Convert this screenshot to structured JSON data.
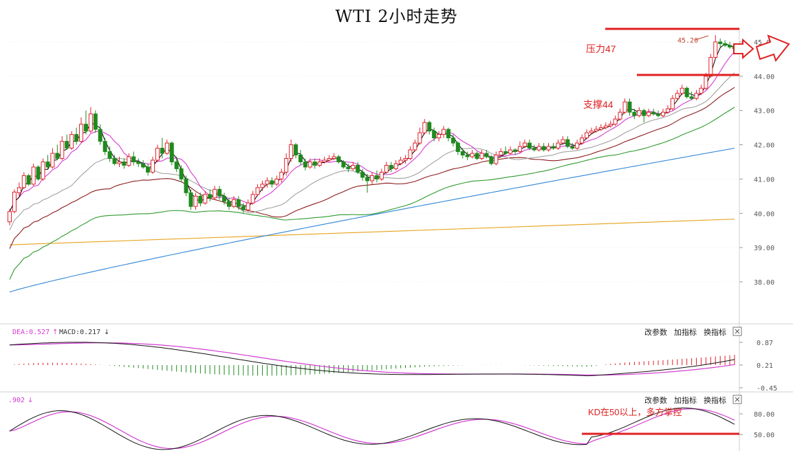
{
  "title": "WTI 2小时走势",
  "colors": {
    "bull": "#e0202a",
    "bear": "#1e8a1e",
    "ma5": "#111111",
    "ma10": "#d23ad2",
    "ma20": "#a0a0a0",
    "ma30": "#8b1a1a",
    "ma60": "#2e9a2e",
    "ma120": "#2f86d6",
    "ma250": "#e5a21a",
    "annotation": "#e02020",
    "macd_line": "#111111",
    "signal_line": "#d23ad2"
  },
  "price_panel": {
    "yticks": [
      "45.00",
      "44.00",
      "43.00",
      "42.00",
      "41.00",
      "40.00",
      "39.00",
      "38.00"
    ],
    "high_label": "45.20",
    "annotations": {
      "resistance": "压力47",
      "support": "支撑44"
    }
  },
  "macd_panel": {
    "legend_dea": "DEA:0.527",
    "legend_macd": "MACD:0.217",
    "yticks": [
      "0.87",
      "0.21",
      "-0.45"
    ],
    "buttons": [
      "改参数",
      "加指标",
      "换指标"
    ]
  },
  "kd_panel": {
    "legend": ".902",
    "yticks": [
      "80.00",
      "50.00"
    ],
    "buttons": [
      "改参数",
      "加指标",
      "换指标"
    ],
    "annotation": "KD在50以上，多方掌控"
  },
  "chart_data": {
    "type": "candlestick",
    "title": "WTI 2小时走势",
    "ylim": [
      37.0,
      45.8
    ],
    "candles": [
      [
        39.75,
        40.05,
        39.65,
        40.12
      ],
      [
        40.05,
        40.62,
        40.0,
        40.7
      ],
      [
        40.6,
        40.75,
        40.5,
        40.9
      ],
      [
        40.75,
        41.1,
        40.7,
        41.2
      ],
      [
        41.1,
        40.85,
        40.8,
        41.15
      ],
      [
        40.85,
        41.35,
        40.8,
        41.45
      ],
      [
        41.35,
        41.0,
        40.95,
        41.4
      ],
      [
        41.0,
        41.5,
        40.95,
        41.6
      ],
      [
        41.5,
        41.35,
        41.3,
        41.7
      ],
      [
        41.35,
        41.75,
        41.3,
        41.9
      ],
      [
        41.75,
        41.6,
        41.55,
        42.0
      ],
      [
        41.6,
        42.1,
        41.55,
        42.25
      ],
      [
        42.1,
        41.9,
        41.85,
        42.3
      ],
      [
        41.9,
        42.3,
        41.85,
        42.4
      ],
      [
        42.3,
        42.1,
        42.0,
        42.5
      ],
      [
        42.1,
        42.6,
        42.05,
        42.8
      ],
      [
        42.6,
        42.4,
        42.3,
        43.0
      ],
      [
        42.4,
        42.9,
        42.35,
        43.1
      ],
      [
        42.9,
        42.45,
        42.35,
        43.0
      ],
      [
        42.45,
        42.1,
        42.0,
        42.6
      ],
      [
        42.1,
        41.8,
        41.7,
        42.2
      ],
      [
        41.8,
        41.6,
        41.5,
        41.95
      ],
      [
        41.6,
        41.45,
        41.4,
        41.7
      ],
      [
        41.45,
        41.5,
        41.35,
        41.65
      ],
      [
        41.5,
        41.4,
        41.3,
        41.6
      ],
      [
        41.4,
        41.65,
        41.35,
        41.75
      ],
      [
        41.65,
        41.5,
        41.4,
        41.8
      ],
      [
        41.5,
        41.45,
        41.35,
        41.6
      ],
      [
        41.45,
        41.35,
        41.3,
        41.55
      ],
      [
        41.35,
        41.2,
        41.1,
        41.45
      ],
      [
        41.2,
        41.55,
        41.15,
        41.65
      ],
      [
        41.55,
        41.9,
        41.5,
        42.0
      ],
      [
        41.9,
        41.75,
        41.6,
        42.2
      ],
      [
        41.75,
        42.05,
        41.7,
        42.15
      ],
      [
        42.05,
        41.5,
        41.4,
        42.1
      ],
      [
        41.5,
        41.3,
        41.2,
        41.65
      ],
      [
        41.3,
        41.0,
        40.9,
        41.4
      ],
      [
        41.0,
        40.6,
        40.5,
        41.1
      ],
      [
        40.6,
        40.2,
        40.1,
        40.7
      ],
      [
        40.2,
        40.5,
        40.1,
        40.6
      ],
      [
        40.5,
        40.3,
        40.2,
        40.6
      ],
      [
        40.3,
        40.55,
        40.25,
        40.65
      ],
      [
        40.55,
        40.45,
        40.35,
        40.7
      ],
      [
        40.45,
        40.7,
        40.4,
        40.8
      ],
      [
        40.7,
        40.5,
        40.4,
        40.8
      ],
      [
        40.5,
        40.35,
        40.25,
        40.6
      ],
      [
        40.35,
        40.2,
        40.1,
        40.45
      ],
      [
        40.2,
        40.4,
        40.15,
        40.5
      ],
      [
        40.4,
        40.2,
        40.1,
        40.5
      ],
      [
        40.2,
        40.1,
        40.0,
        40.3
      ],
      [
        40.1,
        40.3,
        40.05,
        40.4
      ],
      [
        40.3,
        40.55,
        40.25,
        40.65
      ],
      [
        40.55,
        40.75,
        40.5,
        40.85
      ],
      [
        40.75,
        40.85,
        40.65,
        40.95
      ],
      [
        40.85,
        40.95,
        40.75,
        41.05
      ],
      [
        40.95,
        40.85,
        40.75,
        41.05
      ],
      [
        40.85,
        41.0,
        40.8,
        41.1
      ],
      [
        41.0,
        41.2,
        40.9,
        41.3
      ],
      [
        41.2,
        41.6,
        41.1,
        41.75
      ],
      [
        41.6,
        42.0,
        41.5,
        42.15
      ],
      [
        42.0,
        41.7,
        41.6,
        42.05
      ],
      [
        41.7,
        41.5,
        41.4,
        41.85
      ],
      [
        41.5,
        41.35,
        41.25,
        41.6
      ],
      [
        41.35,
        41.5,
        41.3,
        41.6
      ],
      [
        41.5,
        41.4,
        41.3,
        41.6
      ],
      [
        41.4,
        41.5,
        41.35,
        41.6
      ],
      [
        41.5,
        41.55,
        41.45,
        41.65
      ],
      [
        41.55,
        41.6,
        41.5,
        41.7
      ],
      [
        41.6,
        41.65,
        41.55,
        41.75
      ],
      [
        41.65,
        41.5,
        41.45,
        41.7
      ],
      [
        41.5,
        41.35,
        41.3,
        41.55
      ],
      [
        41.35,
        41.3,
        41.2,
        41.45
      ],
      [
        41.3,
        41.4,
        41.25,
        41.5
      ],
      [
        41.4,
        41.2,
        41.15,
        41.5
      ],
      [
        41.2,
        41.05,
        40.95,
        41.3
      ],
      [
        41.05,
        40.95,
        40.6,
        41.15
      ],
      [
        40.95,
        41.1,
        40.85,
        41.2
      ],
      [
        41.1,
        41.0,
        40.9,
        41.25
      ],
      [
        41.0,
        41.2,
        40.95,
        41.3
      ],
      [
        41.2,
        41.4,
        41.15,
        41.5
      ],
      [
        41.4,
        41.3,
        41.2,
        41.5
      ],
      [
        41.3,
        41.45,
        41.25,
        41.55
      ],
      [
        41.45,
        41.55,
        41.4,
        41.65
      ],
      [
        41.55,
        41.6,
        41.45,
        41.7
      ],
      [
        41.6,
        41.85,
        41.55,
        41.95
      ],
      [
        41.85,
        42.05,
        41.8,
        42.15
      ],
      [
        42.05,
        42.35,
        42.0,
        42.5
      ],
      [
        42.35,
        42.65,
        42.3,
        42.75
      ],
      [
        42.65,
        42.4,
        42.3,
        42.7
      ],
      [
        42.4,
        42.2,
        42.1,
        42.5
      ],
      [
        42.2,
        42.3,
        42.1,
        42.4
      ],
      [
        42.3,
        42.45,
        42.2,
        42.55
      ],
      [
        42.45,
        42.2,
        42.1,
        42.5
      ],
      [
        42.2,
        42.05,
        41.95,
        42.3
      ],
      [
        42.05,
        41.8,
        41.7,
        42.1
      ],
      [
        41.8,
        41.7,
        41.6,
        41.9
      ],
      [
        41.7,
        41.65,
        41.55,
        41.8
      ],
      [
        41.65,
        41.75,
        41.6,
        41.85
      ],
      [
        41.75,
        41.6,
        41.55,
        41.8
      ],
      [
        41.6,
        41.75,
        41.55,
        41.85
      ],
      [
        41.75,
        41.65,
        41.6,
        41.85
      ],
      [
        41.65,
        41.45,
        41.4,
        41.7
      ],
      [
        41.45,
        41.7,
        41.4,
        41.8
      ],
      [
        41.7,
        41.8,
        41.65,
        41.9
      ],
      [
        41.8,
        41.75,
        41.7,
        41.95
      ],
      [
        41.75,
        41.85,
        41.7,
        41.95
      ],
      [
        41.85,
        41.8,
        41.7,
        41.9
      ],
      [
        41.8,
        41.95,
        41.75,
        42.1
      ],
      [
        41.95,
        42.05,
        41.9,
        42.15
      ],
      [
        42.05,
        41.9,
        41.85,
        42.15
      ],
      [
        41.9,
        41.85,
        41.8,
        42.0
      ],
      [
        41.85,
        41.95,
        41.8,
        42.05
      ],
      [
        41.95,
        41.85,
        41.8,
        42.05
      ],
      [
        41.85,
        41.95,
        41.8,
        42.05
      ],
      [
        41.95,
        41.9,
        41.85,
        42.05
      ],
      [
        41.9,
        42.05,
        41.85,
        42.15
      ],
      [
        42.05,
        42.15,
        42.0,
        42.25
      ],
      [
        42.15,
        41.95,
        41.9,
        42.25
      ],
      [
        41.95,
        41.9,
        41.85,
        42.05
      ],
      [
        41.9,
        42.05,
        41.85,
        42.15
      ],
      [
        42.05,
        42.2,
        42.0,
        42.3
      ],
      [
        42.2,
        42.35,
        42.15,
        42.45
      ],
      [
        42.35,
        42.4,
        42.3,
        42.5
      ],
      [
        42.4,
        42.45,
        42.35,
        42.55
      ],
      [
        42.45,
        42.5,
        42.4,
        42.6
      ],
      [
        42.5,
        42.55,
        42.45,
        42.65
      ],
      [
        42.55,
        42.6,
        42.5,
        42.7
      ],
      [
        42.6,
        42.75,
        42.55,
        42.85
      ],
      [
        42.75,
        42.95,
        42.7,
        43.05
      ],
      [
        42.95,
        43.25,
        42.9,
        43.35
      ],
      [
        43.25,
        42.95,
        42.85,
        43.35
      ],
      [
        42.95,
        42.85,
        42.75,
        43.05
      ],
      [
        42.85,
        43.0,
        42.8,
        43.1
      ],
      [
        43.0,
        42.85,
        42.65,
        43.05
      ],
      [
        42.85,
        42.95,
        42.8,
        43.05
      ],
      [
        42.95,
        42.9,
        42.85,
        43.05
      ],
      [
        42.9,
        42.85,
        42.8,
        43.0
      ],
      [
        42.85,
        42.95,
        42.8,
        43.05
      ],
      [
        42.95,
        43.05,
        42.9,
        43.15
      ],
      [
        43.05,
        43.35,
        43.0,
        43.45
      ],
      [
        43.35,
        43.5,
        43.3,
        43.6
      ],
      [
        43.5,
        43.65,
        43.45,
        43.75
      ],
      [
        43.65,
        43.4,
        43.35,
        43.7
      ],
      [
        43.4,
        43.35,
        43.3,
        43.55
      ],
      [
        43.35,
        43.5,
        43.3,
        43.6
      ],
      [
        43.5,
        43.65,
        43.45,
        43.75
      ],
      [
        43.65,
        44.0,
        43.6,
        44.1
      ],
      [
        44.0,
        44.55,
        43.95,
        44.65
      ],
      [
        44.55,
        45.0,
        44.5,
        45.2
      ],
      [
        45.0,
        44.95,
        44.85,
        45.1
      ],
      [
        44.95,
        44.9,
        44.85,
        45.05
      ],
      [
        44.9,
        44.85,
        44.8,
        45.0
      ],
      [
        44.85,
        44.8,
        44.75,
        44.95
      ]
    ],
    "support": 44.0,
    "resistance_label": "压力47",
    "support_label": "支撑44",
    "moving_averages": [
      "ma5",
      "ma10",
      "ma20",
      "ma30",
      "ma60",
      "ma120",
      "ma250"
    ],
    "macd": {
      "yticks": [
        0.87,
        0.21,
        -0.45
      ],
      "dea": 0.527,
      "macd": 0.217
    },
    "kd": {
      "yticks": [
        80,
        50
      ],
      "annotation": "KD在50以上，多方掌控"
    }
  }
}
